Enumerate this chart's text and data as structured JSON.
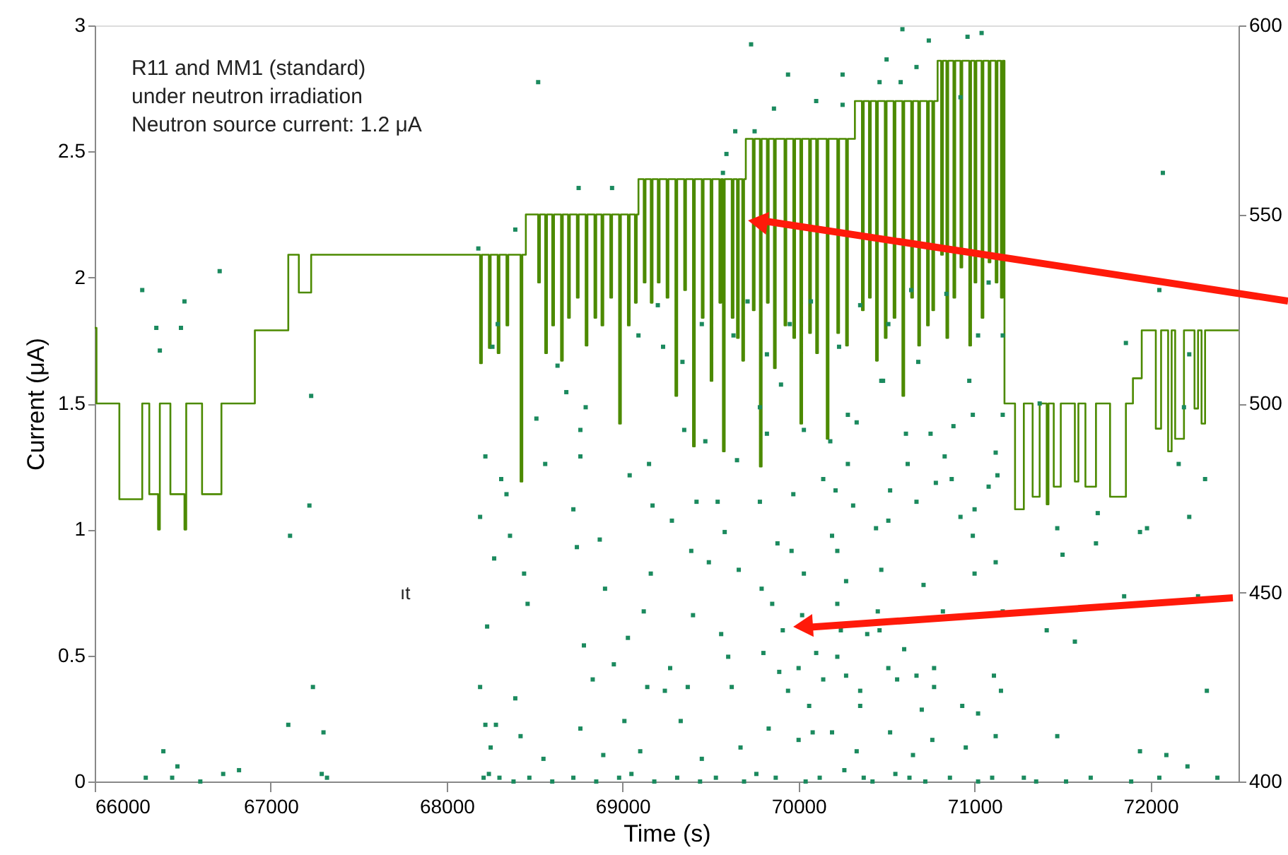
{
  "chart_data": {
    "type": "step",
    "xlabel": "Time (s)",
    "ylabel": "Current (μA)",
    "annotations": [
      "R11 and MM1 (standard)",
      "under neutron irradiation",
      "Neutron source current: 1.2 μA",
      "ıt"
    ],
    "xlim": [
      66000,
      72500
    ],
    "xticks": [
      66000,
      67000,
      68000,
      69000,
      70000,
      71000,
      72000
    ],
    "ylim": [
      0,
      3
    ],
    "yticks": [
      0,
      0.5,
      1,
      1.5,
      2,
      2.5,
      3
    ],
    "y2lim": [
      400,
      600
    ],
    "y2ticks": [
      400,
      450,
      500,
      550,
      600
    ],
    "series": [
      {
        "color": "#4c8a00",
        "x": [
          66000,
          66010,
          66140,
          66270,
          66310,
          66360,
          66370,
          66430,
          66510,
          66520,
          66610,
          66720,
          66910,
          67100,
          67160,
          67230,
          68190,
          68200,
          68240,
          68250,
          68290,
          68300,
          68340,
          68350,
          68420,
          68430,
          68450,
          68520,
          68530,
          68560,
          68570,
          68600,
          68610,
          68650,
          68660,
          68690,
          68700,
          68740,
          68750,
          68790,
          68800,
          68840,
          68850,
          68880,
          68890,
          68930,
          68940,
          68980,
          68990,
          69030,
          69040,
          69070,
          69080,
          69090,
          69120,
          69130,
          69160,
          69170,
          69200,
          69210,
          69250,
          69260,
          69300,
          69310,
          69350,
          69360,
          69400,
          69410,
          69450,
          69460,
          69500,
          69510,
          69550,
          69560,
          69570,
          69580,
          69620,
          69630,
          69650,
          69660,
          69680,
          69690,
          69700,
          69740,
          69750,
          69780,
          69790,
          69820,
          69830,
          69860,
          69870,
          69920,
          69930,
          69970,
          69980,
          70010,
          70020,
          70060,
          70070,
          70100,
          70110,
          70160,
          70170,
          70220,
          70230,
          70270,
          70280,
          70320,
          70360,
          70370,
          70400,
          70410,
          70440,
          70450,
          70490,
          70500,
          70540,
          70550,
          70590,
          70600,
          70640,
          70650,
          70680,
          70690,
          70730,
          70740,
          70760,
          70770,
          70790,
          70810,
          70820,
          70840,
          70850,
          70880,
          70890,
          70920,
          70930,
          70970,
          70980,
          71000,
          71010,
          71040,
          71050,
          71080,
          71090,
          71120,
          71130,
          71150,
          71160,
          71170,
          71230,
          71280,
          71330,
          71370,
          71410,
          71420,
          71450,
          71490,
          71570,
          71590,
          71630,
          71690,
          71770,
          71860,
          71900,
          71950,
          72030,
          72060,
          72100,
          72120,
          72140,
          72190,
          72250,
          72270,
          72290,
          72310,
          72500
        ],
        "values": [
          1.8,
          1.5,
          1.12,
          1.5,
          1.14,
          1.0,
          1.5,
          1.14,
          1.0,
          1.5,
          1.14,
          1.5,
          1.79,
          2.09,
          1.94,
          2.09,
          1.66,
          2.09,
          1.72,
          2.09,
          1.7,
          2.09,
          1.81,
          2.09,
          1.19,
          2.09,
          2.25,
          1.98,
          2.25,
          1.7,
          2.25,
          1.81,
          2.25,
          1.67,
          2.25,
          1.84,
          2.25,
          1.92,
          2.25,
          1.73,
          2.25,
          1.84,
          2.25,
          1.81,
          2.25,
          1.92,
          2.25,
          1.42,
          2.25,
          1.81,
          2.25,
          1.9,
          2.25,
          2.39,
          1.98,
          2.39,
          1.9,
          2.39,
          1.98,
          2.39,
          1.92,
          2.39,
          1.53,
          2.39,
          1.95,
          2.39,
          1.33,
          2.39,
          1.84,
          2.39,
          1.59,
          2.39,
          1.9,
          2.39,
          1.31,
          2.39,
          1.84,
          2.39,
          1.76,
          2.39,
          1.67,
          2.39,
          2.55,
          1.87,
          2.55,
          1.25,
          2.55,
          1.9,
          2.55,
          1.64,
          2.55,
          1.81,
          2.55,
          1.76,
          2.55,
          1.42,
          2.55,
          1.78,
          2.55,
          1.7,
          2.55,
          1.36,
          2.55,
          1.78,
          2.55,
          1.73,
          2.55,
          2.7,
          1.87,
          2.7,
          1.92,
          2.7,
          1.67,
          2.7,
          1.76,
          2.7,
          1.84,
          2.7,
          1.53,
          2.7,
          1.92,
          2.7,
          1.73,
          2.7,
          1.81,
          2.7,
          1.87,
          2.7,
          2.86,
          2.09,
          2.86,
          1.76,
          2.86,
          1.92,
          2.86,
          2.04,
          2.86,
          1.73,
          2.86,
          1.98,
          2.86,
          1.84,
          2.86,
          2.06,
          2.86,
          1.98,
          2.86,
          1.92,
          2.86,
          1.5,
          1.08,
          1.5,
          1.13,
          1.5,
          1.1,
          1.5,
          1.17,
          1.5,
          1.19,
          1.5,
          1.17,
          1.5,
          1.13,
          1.5,
          1.6,
          1.79,
          1.4,
          1.79,
          1.31,
          1.79,
          1.36,
          1.79,
          1.48,
          1.79,
          1.42,
          1.79,
          1.79
        ]
      },
      {
        "type": "scatter",
        "axis": "y2",
        "color": "#1b8a5e",
        "marker": "square",
        "x": [
          66270,
          66350,
          66370,
          66490,
          66510,
          66710,
          67230,
          68180,
          68260,
          68290,
          66390,
          66470,
          66730,
          66820,
          67110,
          67100,
          67220,
          67240,
          67300,
          67290,
          68190,
          68220,
          68310,
          68340,
          68270,
          68230,
          68190,
          68220,
          68280,
          68250,
          69730,
          69940,
          70250,
          69860,
          70100,
          70250,
          70460,
          70500,
          68520,
          68750,
          68940,
          69640,
          69750,
          69590,
          69570,
          68390,
          68630,
          68680,
          68790,
          68510,
          69090,
          69200,
          69230,
          69340,
          69450,
          69630,
          69710,
          69820,
          69900,
          69950,
          70070,
          70230,
          70350,
          70480,
          70280,
          69780,
          70590,
          70740,
          70960,
          71040,
          70670,
          70580,
          70920,
          72070,
          72050,
          70510,
          70640,
          70840,
          71080,
          71020,
          71160,
          70680,
          70470,
          70970,
          71860,
          72220,
          72190,
          71370,
          68360,
          68440,
          68460,
          68560,
          68760,
          68760,
          68720,
          68740,
          68870,
          68900,
          68780,
          68830,
          68950,
          69030,
          69120,
          69040,
          69150,
          69170,
          69280,
          69160,
          69350,
          69470,
          69420,
          69540,
          69390,
          69490,
          69400,
          69560,
          69600,
          69620,
          69370,
          69240,
          69270,
          69140,
          69330,
          69010,
          68760,
          68390,
          68420,
          68550,
          68890,
          69100,
          69450,
          69670,
          69830,
          70000,
          70080,
          69940,
          70060,
          69890,
          70000,
          69800,
          69910,
          69850,
          69790,
          69660,
          69650,
          69580,
          69780,
          69880,
          69960,
          69970,
          70030,
          70140,
          70180,
          70280,
          70210,
          70310,
          70030,
          70330,
          69820,
          70190,
          70220,
          70270,
          70220,
          70020,
          70240,
          70390,
          70100,
          70220,
          70270,
          70140,
          70350,
          70350,
          70190,
          70330,
          70440,
          70470,
          70510,
          70510,
          70610,
          70750,
          70880,
          70990,
          71160,
          70620,
          70830,
          70520,
          70670,
          70780,
          70870,
          71120,
          71130,
          71080,
          70920,
          71000,
          70990,
          71120,
          71000,
          70710,
          70820,
          70450,
          70460,
          70600,
          70560,
          70670,
          70770,
          70700,
          70770,
          70930,
          71020,
          71110,
          71150,
          70520,
          70650,
          70760,
          70950,
          71120,
          71470,
          71500,
          71690,
          71700,
          71940,
          71980,
          72220,
          72310,
          72160,
          71410,
          71570,
          71850,
          71160,
          72270,
          72320,
          71470,
          71940,
          72090,
          72210,
          66290,
          66440,
          66600,
          67320,
          68210,
          68240,
          68300,
          68380,
          68470,
          68600,
          68720,
          68850,
          68980,
          69050,
          69180,
          69310,
          69440,
          69530,
          69690,
          69760,
          69870,
          70040,
          70120,
          70260,
          70370,
          70420,
          70550,
          70630,
          70720,
          70860,
          71020,
          71100,
          71280,
          71350,
          71520,
          71660,
          71890,
          72050,
          72380
        ],
        "values": [
          530,
          520,
          514,
          520,
          527,
          535,
          502,
          541,
          515,
          521,
          408,
          404,
          402,
          403,
          465,
          415,
          473,
          425,
          413,
          402,
          470,
          486,
          480,
          476,
          459,
          441,
          425,
          415,
          415,
          409,
          595,
          587,
          587,
          578,
          580,
          579,
          585,
          591,
          585,
          557,
          557,
          572,
          572,
          566,
          561,
          546,
          510,
          503,
          499,
          496,
          518,
          526,
          515,
          511,
          521,
          518,
          527,
          513,
          505,
          521,
          527,
          515,
          526,
          506,
          497,
          499,
          599,
          596,
          597,
          598,
          589,
          585,
          581,
          561,
          530,
          521,
          530,
          529,
          532,
          518,
          518,
          511,
          506,
          506,
          516,
          513,
          499,
          500,
          465,
          455,
          447,
          484,
          493,
          486,
          472,
          462,
          464,
          451,
          436,
          427,
          431,
          438,
          445,
          481,
          484,
          473,
          469,
          455,
          493,
          490,
          474,
          474,
          461,
          458,
          444,
          439,
          433,
          425,
          425,
          424,
          430,
          425,
          416,
          416,
          414,
          422,
          412,
          406,
          407,
          408,
          406,
          409,
          414,
          411,
          413,
          424,
          420,
          429,
          430,
          434,
          440,
          447,
          451,
          456,
          485,
          466,
          474,
          463,
          461,
          476,
          455,
          480,
          490,
          484,
          477,
          473,
          493,
          495,
          492,
          465,
          461,
          453,
          447,
          444,
          440,
          439,
          434,
          433,
          428,
          427,
          424,
          420,
          413,
          408,
          467,
          456,
          430,
          469,
          492,
          492,
          494,
          497,
          497,
          484,
          486,
          477,
          474,
          479,
          480,
          487,
          481,
          478,
          470,
          472,
          465,
          458,
          455,
          452,
          445,
          445,
          440,
          435,
          427,
          428,
          430,
          419,
          425,
          420,
          418,
          428,
          424,
          413,
          407,
          411,
          409,
          412,
          467,
          460,
          463,
          471,
          466,
          467,
          470,
          480,
          484,
          440,
          437,
          449,
          445,
          449,
          424,
          412,
          408,
          407,
          404,
          401,
          401,
          400,
          401,
          401,
          402,
          401,
          400,
          401,
          400,
          401,
          400,
          401,
          402,
          400,
          401,
          400,
          401,
          400,
          402,
          401,
          400,
          401,
          403,
          401,
          400,
          402,
          401,
          400,
          401,
          400,
          401,
          401,
          400,
          400,
          401,
          400,
          401,
          401
        ]
      }
    ]
  }
}
